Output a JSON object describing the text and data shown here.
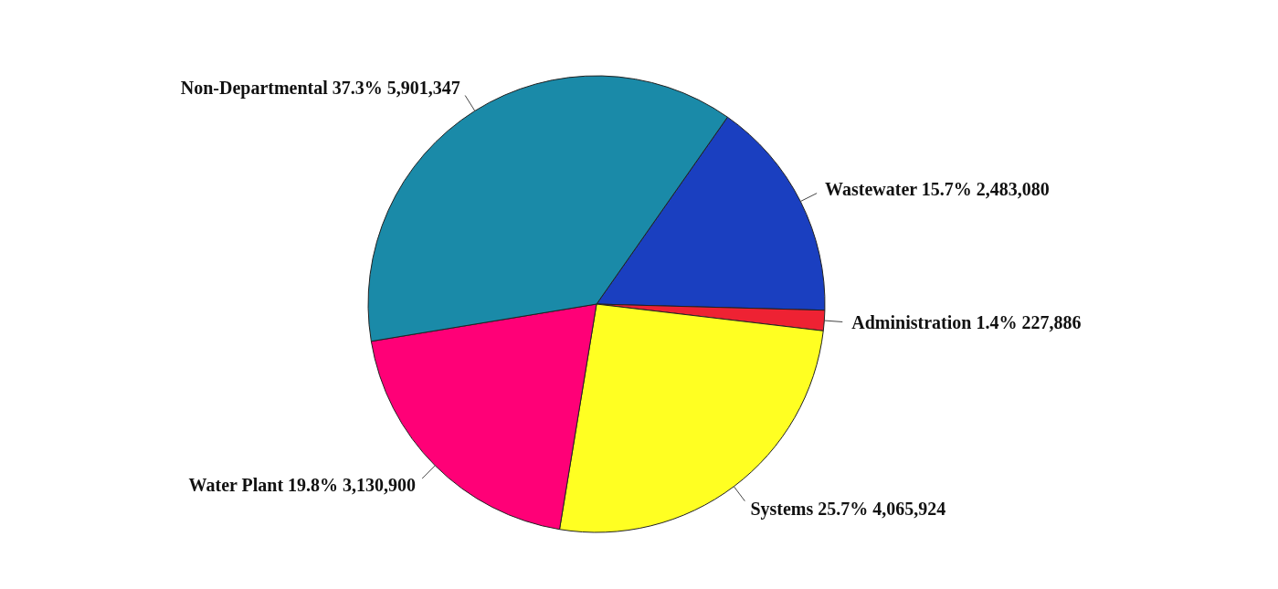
{
  "chart_data": {
    "type": "pie",
    "categories": [
      "Wastewater",
      "Administration",
      "Systems",
      "Water Plant",
      "Non-Departmental"
    ],
    "values": [
      2483080,
      227886,
      4065924,
      3130900,
      5901347
    ],
    "value_labels": [
      "15.7% 2,483,080",
      "1.4% 227,886",
      "25.7% 4,065,924",
      "19.8% 3,130,900",
      "37.3% 5,901,347"
    ],
    "colors": [
      "#1a3fc0",
      "#ee2233",
      "#ffff22",
      "#ff0077",
      "#1a8aa8"
    ],
    "legend": false
  }
}
